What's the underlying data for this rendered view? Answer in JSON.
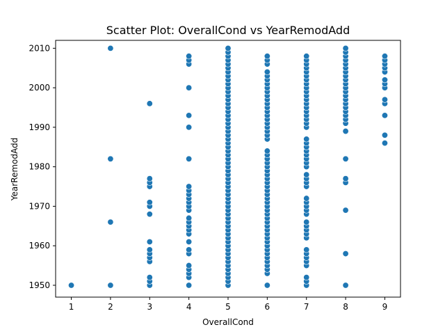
{
  "chart_data": {
    "type": "scatter",
    "title": "Scatter Plot: OverallCond vs YearRemodAdd",
    "xlabel": "OverallCond",
    "ylabel": "YearRemodAdd",
    "xlim": [
      0.6,
      9.4
    ],
    "ylim": [
      1947,
      2012
    ],
    "xticks": [
      1,
      2,
      3,
      4,
      5,
      6,
      7,
      8,
      9
    ],
    "yticks": [
      1950,
      1960,
      1970,
      1980,
      1990,
      2000,
      2010
    ],
    "grid": false,
    "color": "#1f77b4",
    "points": [
      {
        "x": 1,
        "years": [
          1950
        ]
      },
      {
        "x": 2,
        "years": [
          1950,
          1966,
          1982,
          2010
        ]
      },
      {
        "x": 3,
        "years": [
          1950,
          1951,
          1952,
          1956,
          1957,
          1958,
          1959,
          1961,
          1968,
          1970,
          1971,
          1975,
          1976,
          1977,
          1996
        ]
      },
      {
        "x": 4,
        "years": [
          1950,
          1952,
          1953,
          1954,
          1955,
          1958,
          1959,
          1961,
          1963,
          1964,
          1965,
          1966,
          1967,
          1969,
          1970,
          1971,
          1972,
          1973,
          1974,
          1975,
          1982,
          1990,
          1993,
          2000,
          2006,
          2007,
          2008
        ]
      },
      {
        "x": 5,
        "years": [
          1950,
          1951,
          1952,
          1953,
          1954,
          1955,
          1956,
          1957,
          1958,
          1959,
          1960,
          1961,
          1962,
          1963,
          1964,
          1965,
          1966,
          1967,
          1968,
          1969,
          1970,
          1971,
          1972,
          1973,
          1974,
          1975,
          1976,
          1977,
          1978,
          1979,
          1980,
          1981,
          1982,
          1983,
          1984,
          1985,
          1986,
          1987,
          1988,
          1989,
          1990,
          1991,
          1992,
          1993,
          1994,
          1995,
          1996,
          1997,
          1998,
          1999,
          2000,
          2001,
          2002,
          2003,
          2004,
          2005,
          2006,
          2007,
          2008,
          2009,
          2010
        ]
      },
      {
        "x": 6,
        "years": [
          1950,
          1953,
          1954,
          1955,
          1956,
          1957,
          1958,
          1959,
          1960,
          1961,
          1962,
          1963,
          1964,
          1965,
          1966,
          1967,
          1968,
          1969,
          1970,
          1971,
          1972,
          1973,
          1974,
          1975,
          1976,
          1977,
          1978,
          1979,
          1980,
          1981,
          1982,
          1983,
          1984,
          1987,
          1988,
          1989,
          1990,
          1991,
          1992,
          1993,
          1994,
          1995,
          1996,
          1997,
          1998,
          1999,
          2000,
          2001,
          2002,
          2003,
          2004,
          2006,
          2007,
          2008
        ]
      },
      {
        "x": 7,
        "years": [
          1950,
          1951,
          1952,
          1955,
          1956,
          1957,
          1958,
          1959,
          1962,
          1963,
          1964,
          1965,
          1966,
          1968,
          1969,
          1970,
          1971,
          1972,
          1975,
          1976,
          1977,
          1978,
          1980,
          1981,
          1982,
          1983,
          1984,
          1985,
          1986,
          1987,
          1990,
          1991,
          1992,
          1993,
          1994,
          1995,
          1996,
          1997,
          1998,
          1999,
          2000,
          2001,
          2002,
          2003,
          2004,
          2005,
          2006,
          2007,
          2008
        ]
      },
      {
        "x": 8,
        "years": [
          1950,
          1958,
          1969,
          1976,
          1977,
          1982,
          1989,
          1991,
          1992,
          1993,
          1994,
          1995,
          1996,
          1997,
          1998,
          1999,
          2000,
          2001,
          2002,
          2003,
          2004,
          2005,
          2006,
          2007,
          2008,
          2009,
          2010
        ]
      },
      {
        "x": 9,
        "years": [
          1986,
          1988,
          1993,
          1996,
          1997,
          2000,
          2001,
          2002,
          2004,
          2005,
          2006,
          2007,
          2008
        ]
      }
    ]
  }
}
